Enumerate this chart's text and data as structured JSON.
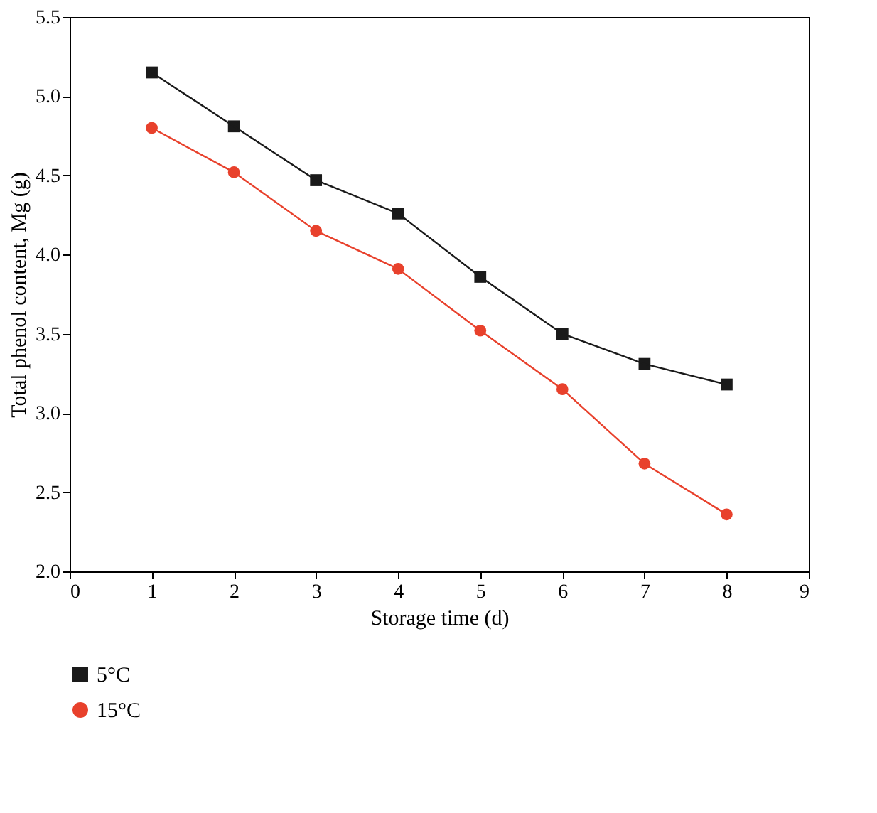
{
  "chart_data": {
    "type": "line",
    "xlabel": "Storage time (d)",
    "ylabel": "Total phenol content, Mg (g)",
    "x": [
      1,
      2,
      3,
      4,
      5,
      6,
      7,
      8
    ],
    "series": [
      {
        "name": "5°C",
        "color": "#1a1a1a",
        "marker": "square",
        "values": [
          5.15,
          4.81,
          4.47,
          4.26,
          3.86,
          3.5,
          3.31,
          3.18
        ]
      },
      {
        "name": "15°C",
        "color": "#e8412c",
        "marker": "circle",
        "values": [
          4.8,
          4.52,
          4.15,
          3.91,
          3.52,
          3.15,
          2.68,
          2.36
        ]
      }
    ],
    "xlim": [
      0,
      9
    ],
    "xticks": [
      0,
      1,
      2,
      3,
      4,
      5,
      6,
      7,
      8,
      9
    ],
    "ylim": [
      2.0,
      5.5
    ],
    "yticks": [
      {
        "value": 2.0,
        "label": "2.0"
      },
      {
        "value": 2.5,
        "label": "2.5"
      },
      {
        "value": 3.0,
        "label": "3.0"
      },
      {
        "value": 3.5,
        "label": "3.5"
      },
      {
        "value": 4.0,
        "label": "4.0"
      },
      {
        "value": 4.5,
        "label": "4.5"
      },
      {
        "value": 5.0,
        "label": "5.0"
      },
      {
        "value": 5.5,
        "label": "5.5"
      }
    ],
    "grid": false,
    "legend": "bottom left",
    "line_style": "solid"
  }
}
